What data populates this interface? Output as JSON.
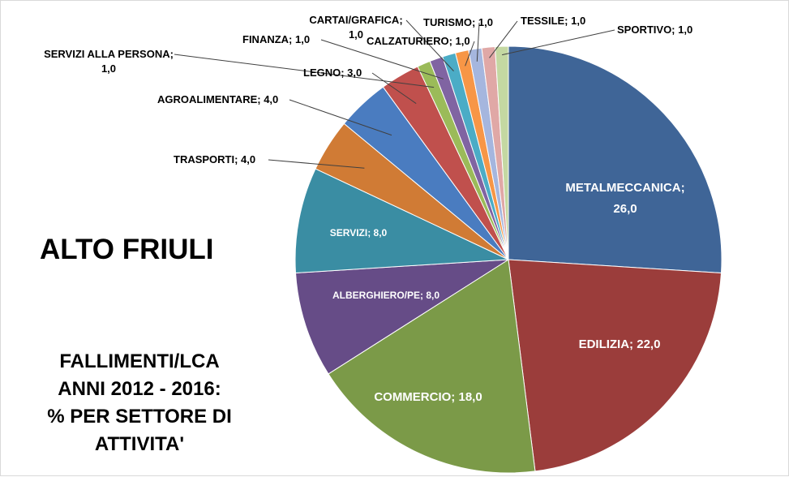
{
  "title": "ALTO FRIULI",
  "subtitle": [
    "FALLIMENTI/LCA",
    "ANNI 2012 - 2016:",
    "% PER SETTORE DI",
    "ATTIVITA'"
  ],
  "chart_data": {
    "type": "pie",
    "legend": "none",
    "slices": [
      {
        "label": "METALMECCANICA",
        "value": 26.0,
        "display": "26,0",
        "color": "#3f6597"
      },
      {
        "label": "EDILIZIA",
        "value": 22.0,
        "display": "22,0",
        "color": "#9b3d3b"
      },
      {
        "label": "COMMERCIO",
        "value": 18.0,
        "display": "18,0",
        "color": "#7b9a48"
      },
      {
        "label": "ALBERGHIERO/PE",
        "value": 8.0,
        "display": "8,0",
        "color": "#664c87"
      },
      {
        "label": "SERVIZI",
        "value": 8.0,
        "display": "8,0",
        "color": "#3a8da3"
      },
      {
        "label": "TRASPORTI",
        "value": 4.0,
        "display": "4,0",
        "color": "#d07b35"
      },
      {
        "label": "AGROALIMENTARE",
        "value": 4.0,
        "display": "4,0",
        "color": "#4a7cc0"
      },
      {
        "label": "LEGNO",
        "value": 3.0,
        "display": "3,0",
        "color": "#c0504d"
      },
      {
        "label": "SERVIZI ALLA PERSONA",
        "value": 1.0,
        "display": "1,0",
        "color": "#9bbb59"
      },
      {
        "label": "FINANZA",
        "value": 1.0,
        "display": "1,0",
        "color": "#8064a2"
      },
      {
        "label": "CARTAI/GRAFICA",
        "value": 1.0,
        "display": "1,0",
        "color": "#4bacc6"
      },
      {
        "label": "CALZATURIERO",
        "value": 1.0,
        "display": "1,0",
        "color": "#f79646"
      },
      {
        "label": "TURISMO",
        "value": 1.0,
        "display": "1,0",
        "color": "#a5b6de"
      },
      {
        "label": "TESSILE",
        "value": 1.0,
        "display": "1,0",
        "color": "#e0a8a6"
      },
      {
        "label": "SPORTIVO",
        "value": 1.0,
        "display": "1,0",
        "color": "#c4d8a2"
      }
    ]
  }
}
